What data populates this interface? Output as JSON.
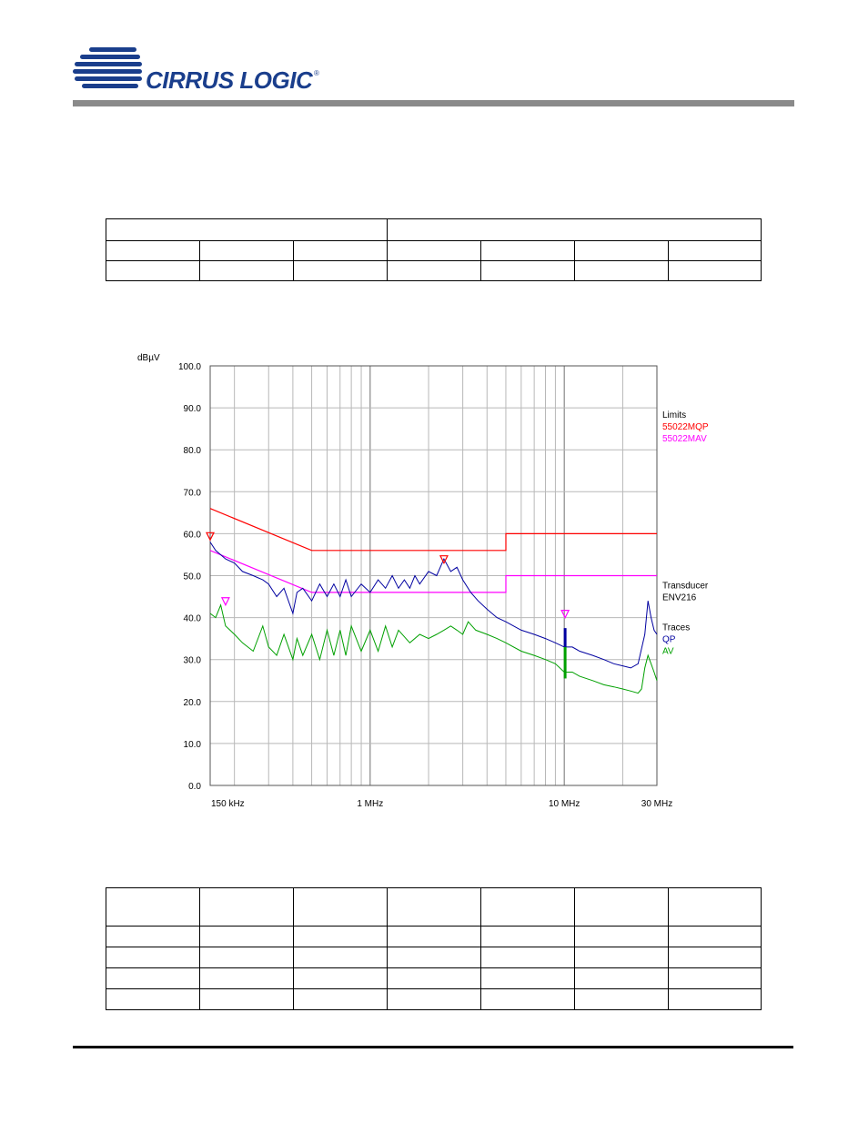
{
  "header": {
    "brand": "CIRRUS LOGIC",
    "registered_mark": "®"
  },
  "colors": {
    "brand_blue": "#1a3e8c",
    "header_bar": "#8a8a8a",
    "limit_qp": "#ff0000",
    "limit_av": "#ff00ff",
    "trace_qp": "#0000a0",
    "trace_av": "#00a000"
  },
  "chart_data": {
    "type": "line",
    "ylabel": "dBµV",
    "ylim": [
      0,
      100
    ],
    "y_ticks": [
      "100.0",
      "90.0",
      "80.0",
      "70.0",
      "60.0",
      "50.0",
      "40.0",
      "30.0",
      "20.0",
      "10.0",
      "0.0"
    ],
    "x_scale": "log",
    "xlim_mhz": [
      0.15,
      30
    ],
    "x_tick_labels": [
      {
        "mhz": 0.15,
        "label": "150 kHz"
      },
      {
        "mhz": 1,
        "label": "1 MHz"
      },
      {
        "mhz": 10,
        "label": "10 MHz"
      },
      {
        "mhz": 30,
        "label": "30 MHz"
      }
    ],
    "grid": true,
    "legend": {
      "limits_title": "Limits",
      "limits": [
        {
          "name": "55022MQP",
          "color": "#ff0000"
        },
        {
          "name": "55022MAV",
          "color": "#ff00ff"
        }
      ],
      "transducer_title": "Transducer",
      "transducer_name": "ENV216",
      "traces_title": "Traces",
      "traces": [
        {
          "name": "QP",
          "color": "#0000a0"
        },
        {
          "name": "AV",
          "color": "#00a000"
        }
      ]
    },
    "limit_series": [
      {
        "name": "55022MQP",
        "points": [
          [
            0.15,
            66
          ],
          [
            0.5,
            56
          ],
          [
            5,
            56
          ],
          [
            5,
            60
          ],
          [
            30,
            60
          ]
        ]
      },
      {
        "name": "55022MAV",
        "points": [
          [
            0.15,
            56
          ],
          [
            0.5,
            46
          ],
          [
            5,
            46
          ],
          [
            5,
            50
          ],
          [
            30,
            50
          ]
        ]
      }
    ],
    "series": [
      {
        "name": "QP",
        "points": [
          [
            0.15,
            58
          ],
          [
            0.16,
            56
          ],
          [
            0.18,
            54
          ],
          [
            0.2,
            53
          ],
          [
            0.22,
            51
          ],
          [
            0.25,
            50
          ],
          [
            0.28,
            49
          ],
          [
            0.3,
            48
          ],
          [
            0.33,
            45
          ],
          [
            0.36,
            47
          ],
          [
            0.4,
            41
          ],
          [
            0.42,
            46
          ],
          [
            0.45,
            47
          ],
          [
            0.5,
            44
          ],
          [
            0.55,
            48
          ],
          [
            0.6,
            45
          ],
          [
            0.65,
            48
          ],
          [
            0.7,
            45
          ],
          [
            0.75,
            49
          ],
          [
            0.8,
            45
          ],
          [
            0.9,
            48
          ],
          [
            1.0,
            46
          ],
          [
            1.1,
            49
          ],
          [
            1.2,
            47
          ],
          [
            1.3,
            50
          ],
          [
            1.4,
            47
          ],
          [
            1.5,
            49
          ],
          [
            1.6,
            47
          ],
          [
            1.7,
            50
          ],
          [
            1.8,
            48
          ],
          [
            2.0,
            51
          ],
          [
            2.2,
            50
          ],
          [
            2.4,
            54
          ],
          [
            2.6,
            51
          ],
          [
            2.8,
            52
          ],
          [
            3.0,
            49
          ],
          [
            3.3,
            46
          ],
          [
            3.6,
            44
          ],
          [
            4.0,
            42
          ],
          [
            4.5,
            40
          ],
          [
            5.0,
            39
          ],
          [
            6.0,
            37
          ],
          [
            7.0,
            36
          ],
          [
            8.0,
            35
          ],
          [
            9.0,
            34
          ],
          [
            10.0,
            33
          ],
          [
            11.0,
            33
          ],
          [
            12.0,
            32
          ],
          [
            14.0,
            31
          ],
          [
            16.0,
            30
          ],
          [
            18.0,
            29
          ],
          [
            20.0,
            28.5
          ],
          [
            22.0,
            28
          ],
          [
            24.0,
            29
          ],
          [
            26.0,
            36
          ],
          [
            27.0,
            44
          ],
          [
            28.0,
            40
          ],
          [
            29.0,
            37
          ],
          [
            30.0,
            36
          ]
        ]
      },
      {
        "name": "AV",
        "points": [
          [
            0.15,
            41
          ],
          [
            0.16,
            40
          ],
          [
            0.17,
            43
          ],
          [
            0.18,
            38
          ],
          [
            0.2,
            36
          ],
          [
            0.22,
            34
          ],
          [
            0.25,
            32
          ],
          [
            0.28,
            38
          ],
          [
            0.3,
            33
          ],
          [
            0.33,
            31
          ],
          [
            0.36,
            36
          ],
          [
            0.4,
            30
          ],
          [
            0.42,
            35
          ],
          [
            0.45,
            31
          ],
          [
            0.5,
            36
          ],
          [
            0.55,
            30
          ],
          [
            0.6,
            37
          ],
          [
            0.65,
            31
          ],
          [
            0.7,
            37
          ],
          [
            0.75,
            31
          ],
          [
            0.8,
            38
          ],
          [
            0.9,
            32
          ],
          [
            1.0,
            37
          ],
          [
            1.1,
            32
          ],
          [
            1.2,
            38
          ],
          [
            1.3,
            33
          ],
          [
            1.4,
            37
          ],
          [
            1.6,
            34
          ],
          [
            1.8,
            36
          ],
          [
            2.0,
            35
          ],
          [
            2.2,
            36
          ],
          [
            2.4,
            37
          ],
          [
            2.6,
            38
          ],
          [
            2.8,
            37
          ],
          [
            3.0,
            36
          ],
          [
            3.2,
            39
          ],
          [
            3.5,
            37
          ],
          [
            4.0,
            36
          ],
          [
            4.5,
            35
          ],
          [
            5.0,
            34
          ],
          [
            6.0,
            32
          ],
          [
            7.0,
            31
          ],
          [
            8.0,
            30
          ],
          [
            9.0,
            29
          ],
          [
            10.0,
            27
          ],
          [
            11.0,
            27
          ],
          [
            12.0,
            26
          ],
          [
            14.0,
            25
          ],
          [
            16.0,
            24
          ],
          [
            18.0,
            23.5
          ],
          [
            20.0,
            23
          ],
          [
            22.0,
            22.5
          ],
          [
            24.0,
            22
          ],
          [
            25.0,
            23
          ],
          [
            26.0,
            28
          ],
          [
            27.0,
            31
          ],
          [
            28.0,
            29
          ],
          [
            29.0,
            27
          ],
          [
            30.0,
            25
          ]
        ]
      }
    ],
    "markers": [
      {
        "mhz": 0.15,
        "db": 58.5,
        "color": "#ff0000"
      },
      {
        "mhz": 0.18,
        "db": 43,
        "color": "#ff00ff"
      },
      {
        "mhz": 2.4,
        "db": 53,
        "color": "#ff0000"
      },
      {
        "mhz": 10.1,
        "db": 40,
        "color": "#ff00ff"
      }
    ],
    "spike_mhz": 10.1,
    "spike_qp_top": 37.5,
    "spike_av_bottom": 25.5
  }
}
